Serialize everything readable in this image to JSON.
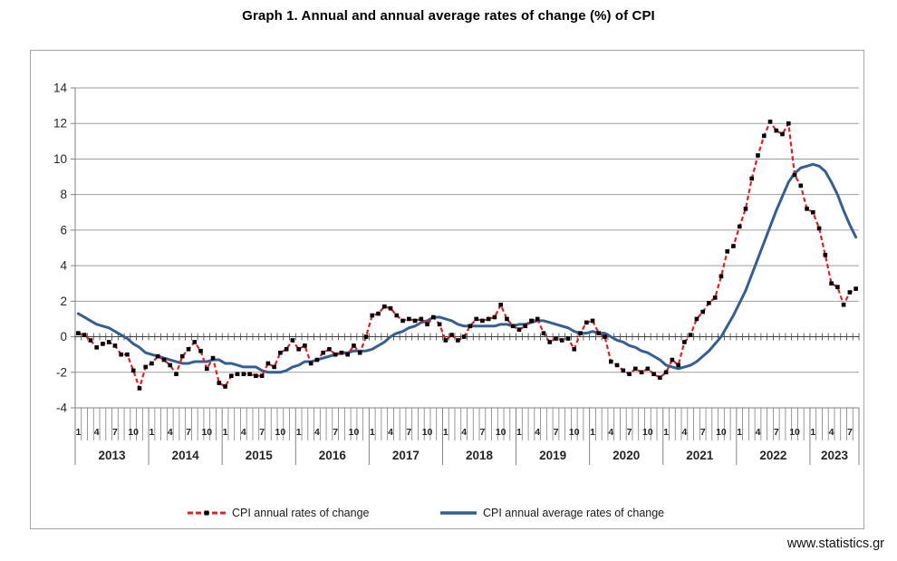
{
  "header": {
    "title": "Graph 1. Annual and annual average rates of change (%) of CPI"
  },
  "footer": {
    "url": "www.statistics.gr"
  },
  "legend": {
    "items": [
      {
        "label": "CPI annual rates of change",
        "series": "annual"
      },
      {
        "label": "CPI annual average rates of change",
        "series": "annual_average"
      }
    ]
  },
  "chart_data": {
    "type": "line",
    "title": "Graph 1. Annual and annual average rates of change (%) of CPI",
    "x_frequency": "monthly",
    "x_start": "2013-01",
    "x_end": "2023-08",
    "years": [
      "2013",
      "2014",
      "2015",
      "2016",
      "2017",
      "2018",
      "2019",
      "2020",
      "2021",
      "2022",
      "2023"
    ],
    "month_tick_labels": [
      1,
      4,
      7,
      10
    ],
    "ylim": [
      -4,
      14
    ],
    "ytick_step": 2,
    "grid": true,
    "legend_position": "bottom",
    "colors": {
      "annual": "#DE2029",
      "annual_marker": "#000000",
      "average": "#365F91",
      "grid": "#9E9E9E",
      "axis": "#808080",
      "zero_axis": "#404040",
      "frame": "#A6A6A6",
      "text": "#262626"
    },
    "series": [
      {
        "name": "CPI annual rates of change",
        "style": "dashed",
        "color_key": "annual",
        "marker": "black-square",
        "values": [
          0.2,
          0.1,
          -0.2,
          -0.6,
          -0.4,
          -0.3,
          -0.5,
          -1.0,
          -1.0,
          -1.9,
          -2.9,
          -1.7,
          -1.5,
          -1.1,
          -1.3,
          -1.6,
          -2.1,
          -1.1,
          -0.7,
          -0.3,
          -0.8,
          -1.8,
          -1.2,
          -2.6,
          -2.8,
          -2.2,
          -2.1,
          -2.1,
          -2.1,
          -2.2,
          -2.2,
          -1.5,
          -1.7,
          -0.9,
          -0.7,
          -0.2,
          -0.7,
          -0.5,
          -1.5,
          -1.3,
          -0.9,
          -0.7,
          -1.0,
          -0.9,
          -1.0,
          -0.5,
          -0.9,
          0.0,
          1.2,
          1.3,
          1.7,
          1.6,
          1.2,
          0.9,
          1.0,
          0.9,
          1.0,
          0.7,
          1.1,
          0.7,
          -0.2,
          0.1,
          -0.2,
          0.0,
          0.6,
          1.0,
          0.9,
          1.0,
          1.1,
          1.8,
          1.0,
          0.6,
          0.4,
          0.6,
          0.9,
          1.0,
          0.2,
          -0.3,
          -0.1,
          -0.2,
          -0.1,
          -0.7,
          0.2,
          0.8,
          0.9,
          0.2,
          0.0,
          -1.4,
          -1.6,
          -1.9,
          -2.1,
          -1.8,
          -2.0,
          -1.8,
          -2.1,
          -2.3,
          -2.0,
          -1.3,
          -1.6,
          -0.3,
          0.1,
          1.0,
          1.4,
          1.9,
          2.2,
          3.4,
          4.8,
          5.1,
          6.2,
          7.2,
          8.9,
          10.2,
          11.3,
          12.1,
          11.6,
          11.4,
          12.0,
          9.1,
          8.5,
          7.2,
          7.0,
          6.1,
          4.6,
          3.0,
          2.8,
          1.8,
          2.5,
          2.7
        ]
      },
      {
        "name": "CPI annual average rates of change",
        "style": "solid",
        "color_key": "average",
        "marker": "none",
        "values": [
          1.3,
          1.1,
          0.9,
          0.7,
          0.6,
          0.5,
          0.3,
          0.1,
          -0.1,
          -0.4,
          -0.6,
          -0.9,
          -1.0,
          -1.1,
          -1.2,
          -1.3,
          -1.4,
          -1.5,
          -1.5,
          -1.4,
          -1.4,
          -1.4,
          -1.3,
          -1.3,
          -1.5,
          -1.5,
          -1.6,
          -1.7,
          -1.7,
          -1.7,
          -1.9,
          -2.0,
          -2.0,
          -2.0,
          -1.9,
          -1.7,
          -1.6,
          -1.4,
          -1.4,
          -1.3,
          -1.2,
          -1.1,
          -1.0,
          -0.9,
          -0.9,
          -0.8,
          -0.8,
          -0.8,
          -0.7,
          -0.5,
          -0.3,
          0.0,
          0.2,
          0.3,
          0.5,
          0.6,
          0.8,
          0.9,
          1.1,
          1.1,
          1.0,
          0.9,
          0.7,
          0.6,
          0.6,
          0.6,
          0.6,
          0.6,
          0.6,
          0.7,
          0.7,
          0.6,
          0.7,
          0.7,
          0.8,
          0.9,
          0.9,
          0.8,
          0.7,
          0.6,
          0.5,
          0.3,
          0.2,
          0.2,
          0.3,
          0.2,
          0.2,
          0.0,
          -0.2,
          -0.3,
          -0.5,
          -0.6,
          -0.8,
          -0.9,
          -1.1,
          -1.3,
          -1.6,
          -1.7,
          -1.8,
          -1.7,
          -1.6,
          -1.4,
          -1.1,
          -0.8,
          -0.4,
          0.0,
          0.6,
          1.2,
          1.9,
          2.6,
          3.5,
          4.4,
          5.3,
          6.2,
          7.1,
          7.9,
          8.7,
          9.2,
          9.5,
          9.6,
          9.7,
          9.6,
          9.3,
          8.7,
          8.0,
          7.1,
          6.3,
          5.6
        ]
      }
    ]
  }
}
